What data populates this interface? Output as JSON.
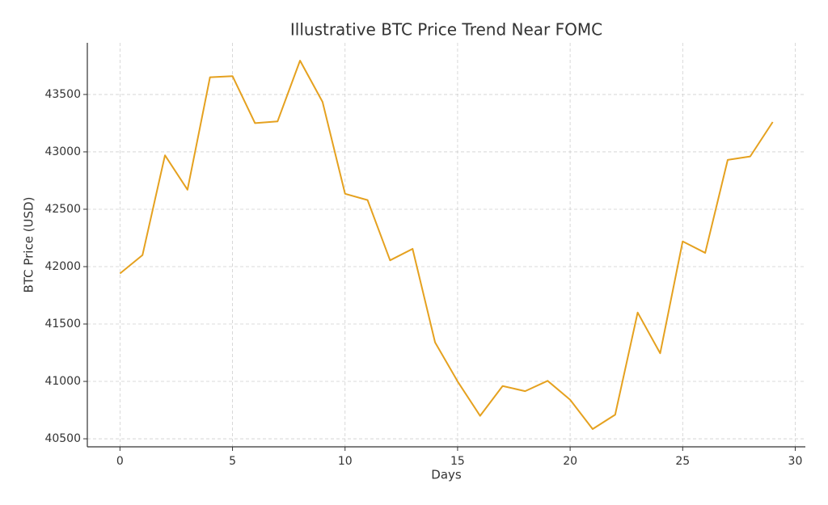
{
  "chart_data": {
    "type": "line",
    "title": "Illustrative BTC Price Trend Near FOMC",
    "x_label": "Days",
    "y_label": "BTC Price (USD)",
    "x": [
      0,
      1,
      2,
      3,
      4,
      5,
      6,
      7,
      8,
      9,
      10,
      11,
      12,
      13,
      14,
      15,
      16,
      17,
      18,
      19,
      20,
      21,
      22,
      23,
      24,
      25,
      26,
      27,
      28,
      29
    ],
    "series": [
      {
        "name": "BTC Price",
        "color": "#e5a11f",
        "values": [
          41940,
          42100,
          42970,
          42670,
          43650,
          43660,
          43250,
          43265,
          43795,
          43435,
          42635,
          42580,
          42055,
          42155,
          41340,
          41000,
          40700,
          40960,
          40915,
          41005,
          40840,
          40585,
          40710,
          41600,
          41245,
          42220,
          42120,
          42930,
          42960,
          43260
        ]
      }
    ],
    "xlim": [
      -1.45,
      30.45
    ],
    "xticks": [
      0,
      5,
      10,
      15,
      20,
      25,
      30
    ],
    "ylim": [
      40430,
      43950
    ],
    "yticks": [
      40500,
      41000,
      41500,
      42000,
      42500,
      43000,
      43500
    ],
    "grid": true
  }
}
